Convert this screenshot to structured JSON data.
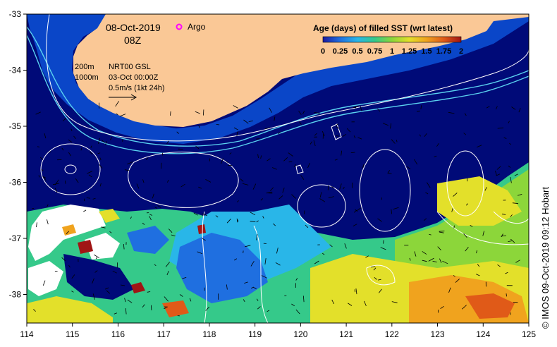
{
  "header": {
    "date": "08-Oct-2019",
    "hour": "08Z"
  },
  "legend": {
    "argo_label": "Argo",
    "argo_color": "#ff00ff",
    "title": "Age (days) of filled SST (wrt latest)",
    "tick_labels": [
      "0",
      "0.25",
      "0.5",
      "0.75",
      "1",
      "1.25",
      "1.5",
      "1.75",
      "2"
    ],
    "colors": [
      "#1a1aa0",
      "#1f6fe0",
      "#29b6e8",
      "#35c98a",
      "#8cd63a",
      "#e3e02a",
      "#f0a31e",
      "#e05a18",
      "#a01515"
    ]
  },
  "annotations": {
    "isobath_200": "200m",
    "isobath_1000": "1000m",
    "product": "NRT00 GSL",
    "product_time": "03-Oct 00:00Z",
    "vector_scale": "0.5m/s (1kt 24h)"
  },
  "axes": {
    "lon_ticks": [
      "114",
      "115",
      "116",
      "117",
      "118",
      "119",
      "120",
      "121",
      "122",
      "123",
      "124",
      "125"
    ],
    "lat_ticks": [
      "-33",
      "-34",
      "-35",
      "-36",
      "-37",
      "-38"
    ]
  },
  "colors": {
    "ocean": "#000a78",
    "land": "#fac896",
    "isobath_line": "#5ad2f0",
    "ssh_contour": "#ffffff",
    "shelf": "#0a46c8"
  },
  "credit": "© IMOS 09-Oct-2019 09:12 Hobart"
}
